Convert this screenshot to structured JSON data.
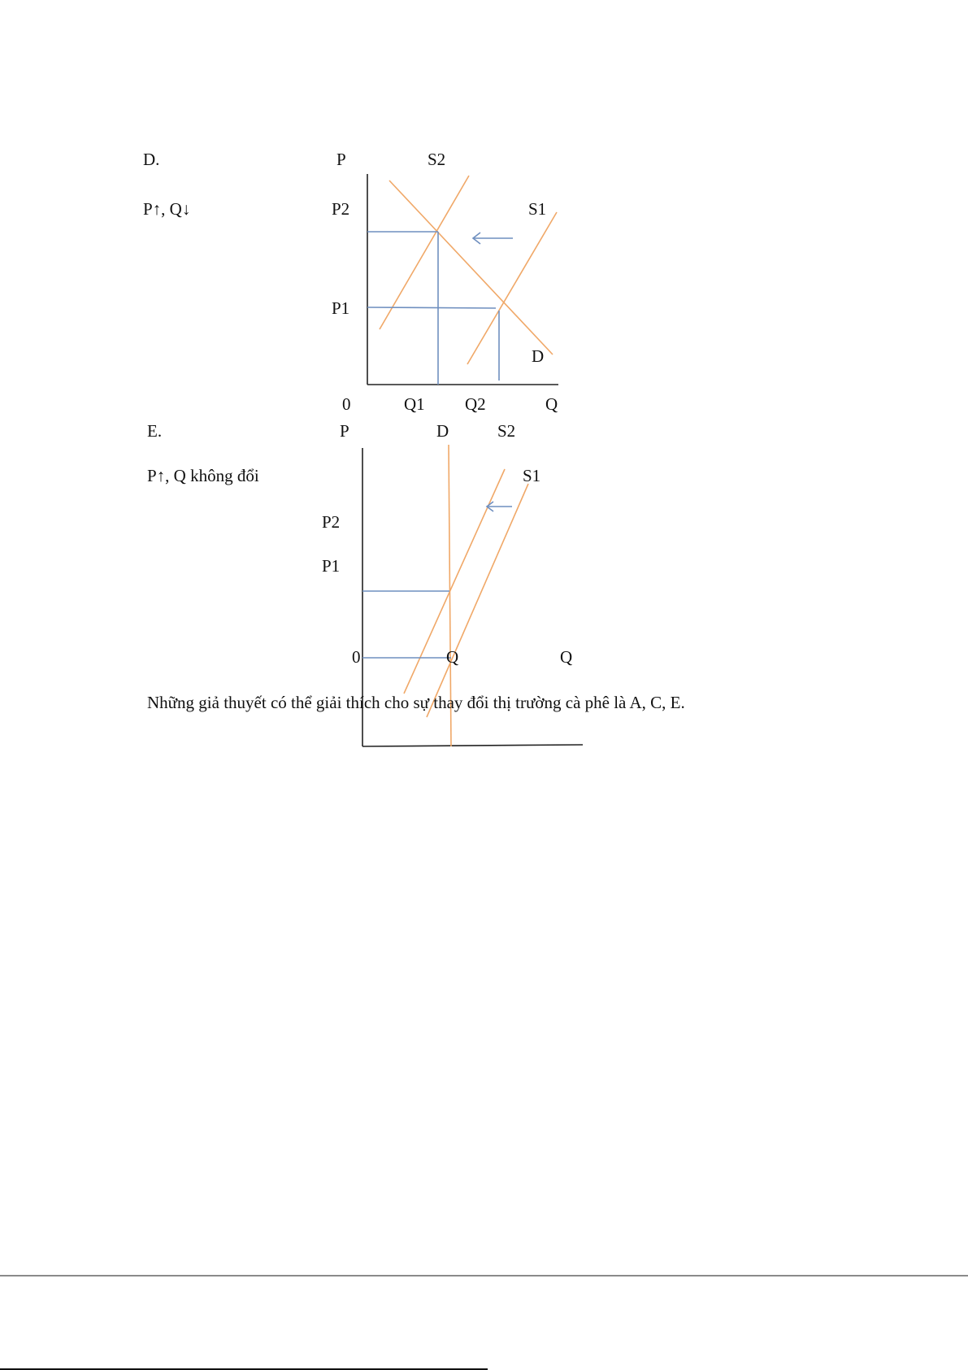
{
  "sections": [
    {
      "letter": "D.",
      "effect": "P↑, Q↓",
      "labels": {
        "p_axis": "P",
        "s2": "S2",
        "p2": "P2",
        "s1": "S1",
        "p1": "P1",
        "d": "D",
        "origin": "0",
        "q1": "Q1",
        "q2": "Q2",
        "q_axis": "Q"
      }
    },
    {
      "letter": "E.",
      "effect": "P↑, Q không đổi",
      "labels": {
        "p_axis": "P",
        "d": "D",
        "s2": "S2",
        "s1": "S1",
        "p2": "P2",
        "p1": "P1",
        "origin": "0",
        "q": "Q",
        "q_axis": "Q"
      }
    }
  ],
  "conclusion": "Những giả thuyết có thể giải thích cho sự thay đổi thị trường cà phê là A, C, E.",
  "colors": {
    "curve": "#f0a868",
    "guide": "#6f8fbf",
    "axis": "#222222"
  }
}
